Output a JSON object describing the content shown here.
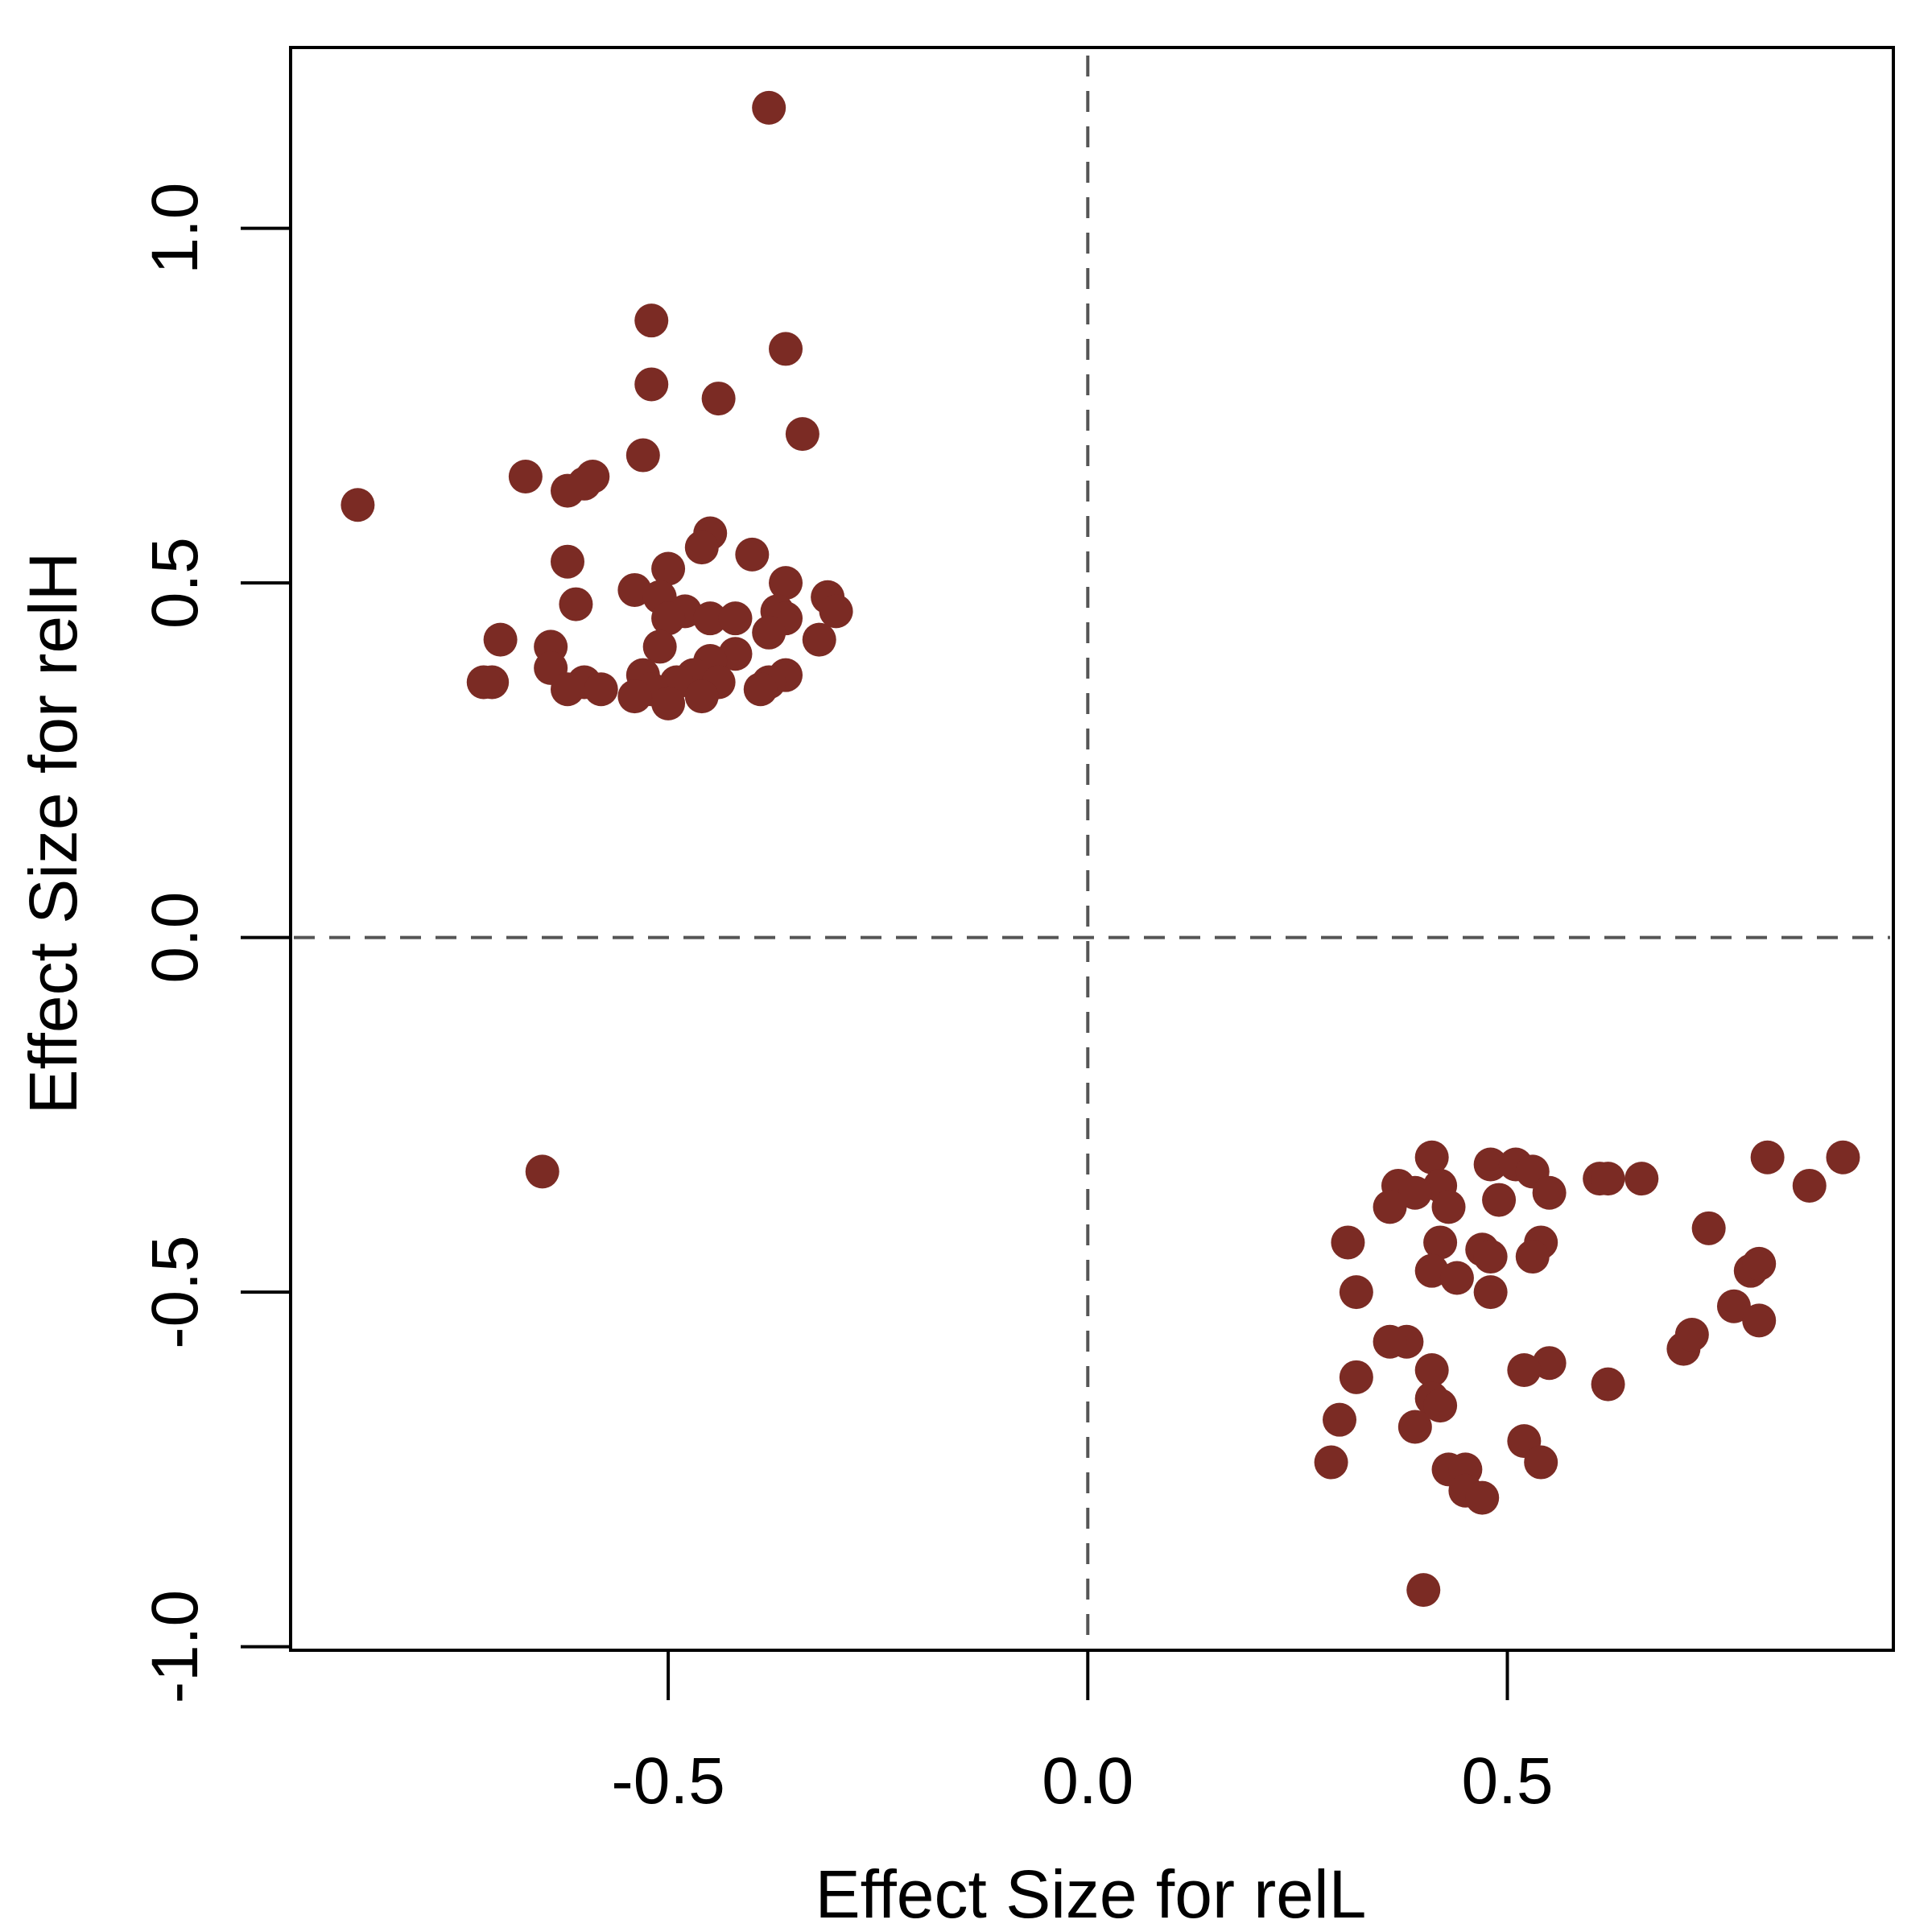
{
  "chart_data": {
    "type": "scatter",
    "title": "",
    "xlabel": "Effect Size for relL",
    "ylabel": "Effect Size for relH",
    "xlim": [
      -0.95,
      0.96
    ],
    "ylim": [
      -1.005,
      1.255
    ],
    "xticks": [
      -0.5,
      0.0,
      0.5
    ],
    "xtick_labels": [
      "-0.5",
      "0.0",
      "0.5"
    ],
    "yticks": [
      -1.0,
      -0.5,
      0.0,
      0.5,
      1.0
    ],
    "ytick_labels": [
      "-1.0",
      "-0.5",
      "0.0",
      "0.5",
      "1.0"
    ],
    "reference_lines": {
      "x": 0.0,
      "y": 0.0,
      "style": "dashed"
    },
    "grid": false,
    "legend": "none",
    "point_color": "#7b2b24",
    "series": [
      {
        "name": "",
        "points": [
          [
            -0.38,
            1.17
          ],
          [
            -0.52,
            0.87
          ],
          [
            -0.36,
            0.83
          ],
          [
            -0.52,
            0.78
          ],
          [
            -0.44,
            0.76
          ],
          [
            -0.34,
            0.71
          ],
          [
            -0.53,
            0.68
          ],
          [
            -0.67,
            0.65
          ],
          [
            -0.59,
            0.65
          ],
          [
            -0.6,
            0.64
          ],
          [
            -0.62,
            0.63
          ],
          [
            -0.87,
            0.61
          ],
          [
            -0.45,
            0.57
          ],
          [
            -0.46,
            0.55
          ],
          [
            -0.4,
            0.54
          ],
          [
            -0.62,
            0.53
          ],
          [
            -0.5,
            0.52
          ],
          [
            -0.36,
            0.5
          ],
          [
            -0.54,
            0.49
          ],
          [
            -0.51,
            0.48
          ],
          [
            -0.31,
            0.48
          ],
          [
            -0.61,
            0.47
          ],
          [
            -0.37,
            0.46
          ],
          [
            -0.3,
            0.46
          ],
          [
            -0.48,
            0.46
          ],
          [
            -0.5,
            0.45
          ],
          [
            -0.45,
            0.45
          ],
          [
            -0.42,
            0.45
          ],
          [
            -0.36,
            0.45
          ],
          [
            -0.38,
            0.43
          ],
          [
            -0.32,
            0.42
          ],
          [
            -0.7,
            0.42
          ],
          [
            -0.64,
            0.41
          ],
          [
            -0.51,
            0.41
          ],
          [
            -0.42,
            0.4
          ],
          [
            -0.45,
            0.39
          ],
          [
            -0.64,
            0.38
          ],
          [
            -0.47,
            0.37
          ],
          [
            -0.36,
            0.37
          ],
          [
            -0.53,
            0.37
          ],
          [
            -0.38,
            0.36
          ],
          [
            -0.44,
            0.36
          ],
          [
            -0.71,
            0.36
          ],
          [
            -0.72,
            0.36
          ],
          [
            -0.6,
            0.36
          ],
          [
            -0.49,
            0.36
          ],
          [
            -0.58,
            0.35
          ],
          [
            -0.39,
            0.35
          ],
          [
            -0.62,
            0.35
          ],
          [
            -0.52,
            0.35
          ],
          [
            -0.46,
            0.34
          ],
          [
            -0.54,
            0.34
          ],
          [
            -0.5,
            0.33
          ],
          [
            -0.65,
            -0.33
          ],
          [
            0.41,
            -0.31
          ],
          [
            0.48,
            -0.32
          ],
          [
            0.51,
            -0.32
          ],
          [
            0.53,
            -0.33
          ],
          [
            0.81,
            -0.31
          ],
          [
            0.9,
            -0.31
          ],
          [
            0.61,
            -0.34
          ],
          [
            0.62,
            -0.34
          ],
          [
            0.66,
            -0.34
          ],
          [
            0.42,
            -0.35
          ],
          [
            0.37,
            -0.35
          ],
          [
            0.39,
            -0.36
          ],
          [
            0.55,
            -0.36
          ],
          [
            0.86,
            -0.35
          ],
          [
            0.49,
            -0.37
          ],
          [
            0.36,
            -0.38
          ],
          [
            0.43,
            -0.38
          ],
          [
            0.74,
            -0.41
          ],
          [
            0.42,
            -0.43
          ],
          [
            0.31,
            -0.43
          ],
          [
            0.54,
            -0.43
          ],
          [
            0.47,
            -0.44
          ],
          [
            0.48,
            -0.45
          ],
          [
            0.53,
            -0.45
          ],
          [
            0.41,
            -0.47
          ],
          [
            0.44,
            -0.48
          ],
          [
            0.79,
            -0.47
          ],
          [
            0.8,
            -0.46
          ],
          [
            0.32,
            -0.5
          ],
          [
            0.48,
            -0.5
          ],
          [
            0.77,
            -0.52
          ],
          [
            0.8,
            -0.54
          ],
          [
            0.38,
            -0.57
          ],
          [
            0.36,
            -0.57
          ],
          [
            0.71,
            -0.58
          ],
          [
            0.72,
            -0.56
          ],
          [
            0.55,
            -0.6
          ],
          [
            0.52,
            -0.61
          ],
          [
            0.32,
            -0.62
          ],
          [
            0.41,
            -0.61
          ],
          [
            0.62,
            -0.63
          ],
          [
            0.41,
            -0.65
          ],
          [
            0.42,
            -0.66
          ],
          [
            0.3,
            -0.68
          ],
          [
            0.39,
            -0.69
          ],
          [
            0.52,
            -0.71
          ],
          [
            0.29,
            -0.74
          ],
          [
            0.54,
            -0.74
          ],
          [
            0.43,
            -0.75
          ],
          [
            0.45,
            -0.75
          ],
          [
            0.45,
            -0.78
          ],
          [
            0.47,
            -0.79
          ],
          [
            0.4,
            -0.92
          ]
        ]
      }
    ]
  }
}
